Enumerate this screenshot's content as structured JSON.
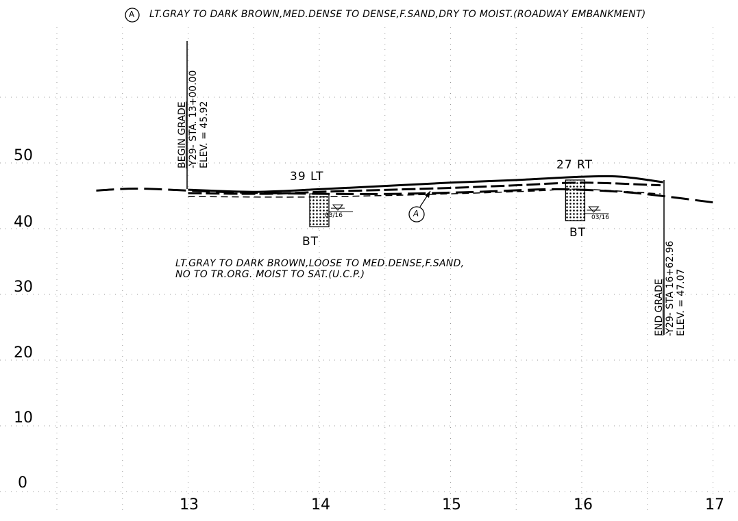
{
  "legend": {
    "symbol": "A",
    "text": "LT.GRAY TO DARK BROWN,MED.DENSE TO DENSE,F.SAND,DRY TO MOIST.(ROADWAY EMBANKMENT)"
  },
  "y_ticks": [
    "0",
    "10",
    "20",
    "30",
    "40",
    "50"
  ],
  "x_ticks": [
    "13",
    "14",
    "15",
    "16",
    "17"
  ],
  "begin_grade": {
    "line1": "BEGIN GRADE",
    "line2": "-Y29- STA. 13+00.00",
    "line3": "ELEV. =  45.92"
  },
  "end_grade": {
    "line1": "END GRADE",
    "line2": "-Y29- STA 16+62.96",
    "line3": "ELEV. =  47.07"
  },
  "boring_left": {
    "offset": "39 LT",
    "type": "BT",
    "date": "03/16"
  },
  "boring_right": {
    "offset": "27 RT",
    "type": "BT",
    "date": "03/16"
  },
  "stratum_callout": "A",
  "lower_stratum": {
    "line1": "LT.GRAY TO DARK BROWN,LOOSE TO MED.DENSE,F.SAND,",
    "line2": "NO TO TR.ORG. MOIST TO SAT.(U.C.P.)"
  },
  "chart_data": {
    "type": "line",
    "x_range": [
      12.3,
      17.1
    ],
    "y_range": [
      0,
      55
    ],
    "series": [
      {
        "x": [
          12.3,
          12.6,
          13.0,
          13.4,
          14.0,
          14.6,
          15.2,
          15.8,
          16.3,
          16.6,
          17.0
        ],
        "y": [
          45.8,
          46.1,
          45.8,
          45.5,
          45.3,
          45.3,
          45.6,
          46.0,
          45.6,
          45.0,
          44.0
        ]
      },
      {
        "x": [
          13.0,
          13.5,
          14.0,
          14.5,
          15.0,
          15.5,
          16.0,
          16.3,
          16.62
        ],
        "y": [
          45.92,
          45.6,
          46.0,
          46.5,
          47.0,
          47.4,
          47.9,
          47.9,
          47.07
        ]
      },
      {
        "x": [
          13.0,
          13.6,
          14.0,
          14.5,
          15.0,
          15.5,
          16.0,
          16.6
        ],
        "y": [
          45.4,
          45.3,
          45.6,
          45.9,
          46.2,
          46.6,
          47.0,
          46.6
        ]
      },
      {
        "x": [
          13.0,
          13.8,
          14.4,
          15.0,
          15.6,
          16.0,
          16.6
        ],
        "y": [
          44.9,
          44.8,
          45.0,
          45.3,
          45.7,
          46.0,
          45.3
        ]
      }
    ],
    "borings": [
      {
        "station": 14.0,
        "top": 45.3,
        "bottom": 40.3,
        "water": 42.8
      },
      {
        "station": 15.95,
        "top": 47.4,
        "bottom": 41.2,
        "water": 42.5
      }
    ]
  }
}
